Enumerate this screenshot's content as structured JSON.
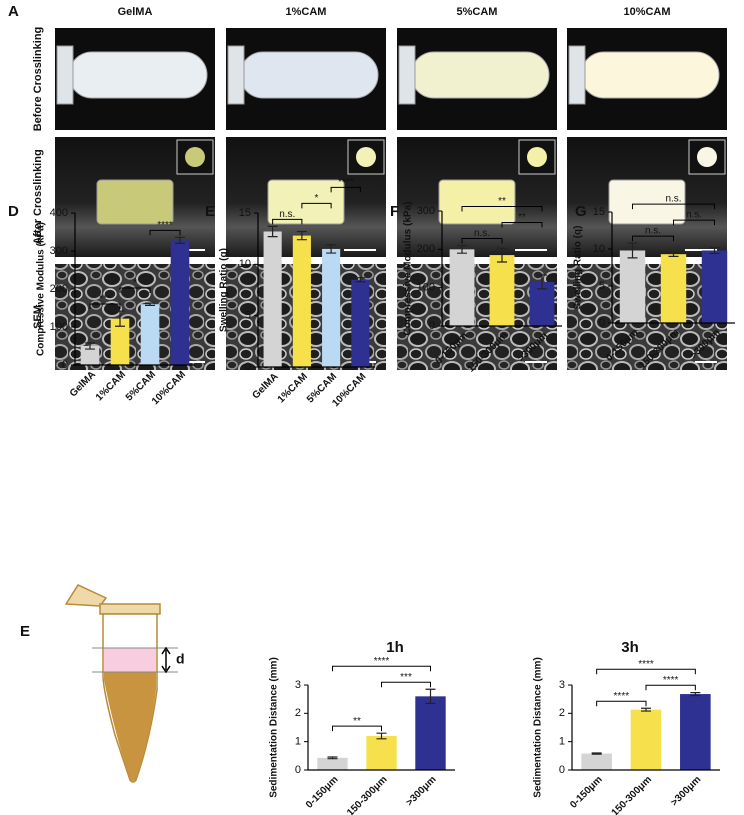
{
  "panel_a": {
    "letter": "A",
    "columns": [
      "GelMA",
      "1%CAM",
      "5%CAM",
      "10%CAM"
    ],
    "rows": [
      "Before Crosslinking",
      "After Crosslinking",
      "SEM"
    ]
  },
  "panel_e2": {
    "letter": "E",
    "diagram_label": "d"
  },
  "chart_data": [
    {
      "type": "bar",
      "panel": "D",
      "y_label": "Compressive Modulus (kPa)",
      "categories": [
        "GelMA",
        "1%CAM",
        "5%CAM",
        "10%CAM"
      ],
      "colors": [
        "#d4d4d4",
        "#f6e14c",
        "#b9daf2",
        "#2e3192"
      ],
      "values": [
        50,
        122,
        160,
        328
      ],
      "errors": [
        8,
        20,
        3,
        8
      ],
      "ylim": [
        0,
        400
      ],
      "yticks": [
        0,
        100,
        200,
        300,
        400
      ],
      "annotations": [
        {
          "text": "***",
          "between": [
            "GelMA",
            "1%CAM"
          ]
        },
        {
          "text": "*",
          "between": [
            "1%CAM",
            "5%CAM"
          ]
        },
        {
          "text": "****",
          "between": [
            "5%CAM",
            "10%CAM"
          ]
        }
      ]
    },
    {
      "type": "bar",
      "panel": "E",
      "y_label": "Swelling Ratio (q)",
      "categories": [
        "GelMA",
        "1%CAM",
        "5%CAM",
        "10%CAM"
      ],
      "colors": [
        "#d4d4d4",
        "#f6e14c",
        "#b9daf2",
        "#2e3192"
      ],
      "values": [
        13.2,
        12.8,
        11.5,
        8.5
      ],
      "errors": [
        0.5,
        0.4,
        0.4,
        0.2
      ],
      "ylim": [
        0,
        15
      ],
      "yticks": [
        0,
        5,
        10,
        15
      ],
      "annotations": [
        {
          "text": "n.s.",
          "between": [
            "GelMA",
            "1%CAM"
          ]
        },
        {
          "text": "*",
          "between": [
            "1%CAM",
            "5%CAM"
          ]
        },
        {
          "text": "****",
          "between": [
            "5%CAM",
            "10%CAM"
          ]
        }
      ]
    },
    {
      "type": "bar",
      "panel": "F",
      "y_label": "Compressive Modulus (kPa)",
      "categories": [
        "0-150μm",
        "150-300μm",
        ">300μm"
      ],
      "colors": [
        "#d4d4d4",
        "#f6e14c",
        "#2e3192"
      ],
      "values": [
        200,
        185,
        115
      ],
      "errors": [
        10,
        18,
        18
      ],
      "ylim": [
        0,
        300
      ],
      "yticks": [
        0,
        100,
        200,
        300
      ],
      "annotations": [
        {
          "text": "n.s.",
          "between": [
            "0-150μm",
            "150-300μm"
          ]
        },
        {
          "text": "**",
          "between": [
            "150-300μm",
            ">300μm"
          ]
        },
        {
          "text": "**",
          "between": [
            "0-150μm",
            ">300μm"
          ]
        }
      ]
    },
    {
      "type": "bar",
      "panel": "G",
      "y_label": "Swelling Ratio (q)",
      "categories": [
        "0-150μm",
        "150-300μm",
        ">300μm"
      ],
      "colors": [
        "#d4d4d4",
        "#f6e14c",
        "#2e3192"
      ],
      "values": [
        9.8,
        9.3,
        9.8
      ],
      "errors": [
        1,
        0.3,
        0.4
      ],
      "ylim": [
        0,
        15
      ],
      "yticks": [
        0,
        5,
        10,
        15
      ],
      "annotations": [
        {
          "text": "n.s.",
          "between": [
            "0-150μm",
            "150-300μm"
          ]
        },
        {
          "text": "n.s.",
          "between": [
            "150-300μm",
            ">300μm"
          ]
        },
        {
          "text": "n.s.",
          "between": [
            "0-150μm",
            ">300μm"
          ]
        }
      ]
    },
    {
      "type": "bar",
      "title": "1h",
      "y_label": "Sedimentation Distance (mm)",
      "categories": [
        "0-150μm",
        "150-300μm",
        ">300μm"
      ],
      "colors": [
        "#d4d4d4",
        "#f6e14c",
        "#2e3192"
      ],
      "values": [
        0.43,
        1.2,
        2.6
      ],
      "errors": [
        0.03,
        0.1,
        0.25
      ],
      "ylim": [
        0,
        3
      ],
      "yticks": [
        0,
        1,
        2,
        3
      ],
      "annotations": [
        {
          "text": "**",
          "between": [
            "0-150μm",
            "150-300μm"
          ]
        },
        {
          "text": "***",
          "between": [
            "150-300μm",
            ">300μm"
          ]
        },
        {
          "text": "****",
          "between": [
            "0-150μm",
            ">300μm"
          ]
        }
      ]
    },
    {
      "type": "bar",
      "title": "3h",
      "y_label": "Sedimentation Distance (mm)",
      "categories": [
        "0-150μm",
        "150-300μm",
        ">300μm"
      ],
      "colors": [
        "#d4d4d4",
        "#f6e14c",
        "#2e3192"
      ],
      "values": [
        0.58,
        2.13,
        2.68
      ],
      "errors": [
        0.02,
        0.05,
        0.05
      ],
      "ylim": [
        0,
        3
      ],
      "yticks": [
        0,
        1,
        2,
        3
      ],
      "annotations": [
        {
          "text": "****",
          "between": [
            "0-150μm",
            "150-300μm"
          ]
        },
        {
          "text": "****",
          "between": [
            "150-300μm",
            ">300μm"
          ]
        },
        {
          "text": "****",
          "between": [
            "0-150μm",
            ">300μm"
          ]
        }
      ]
    }
  ]
}
